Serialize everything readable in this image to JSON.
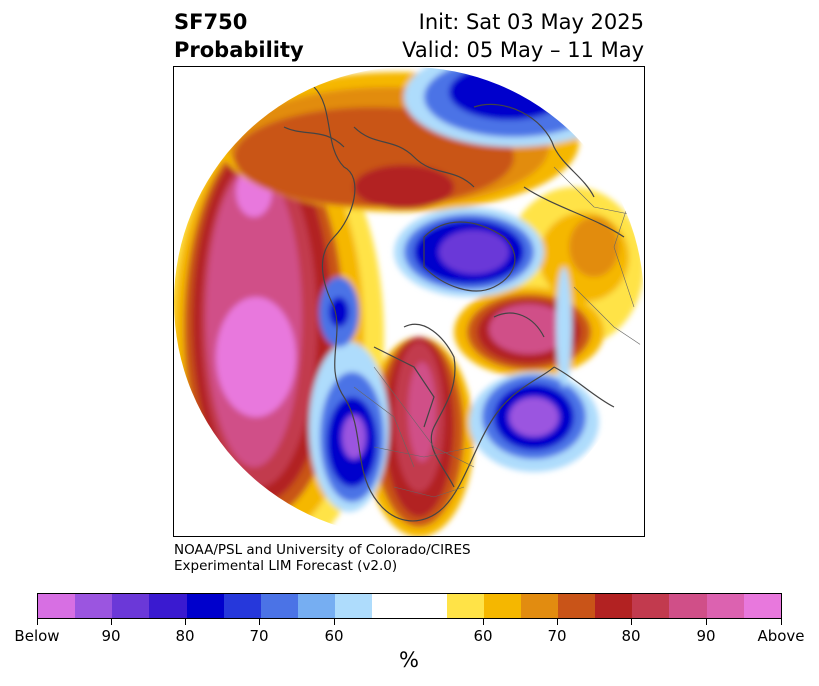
{
  "title": {
    "left_line1": "SF750",
    "left_line2": "Probability",
    "right_line1": "Init: Sat 03 May 2025",
    "right_line2": "Valid: 05 May – 11 May"
  },
  "credit": {
    "line1": "NOAA/PSL and University of Colorado/CIRES",
    "line2": "Experimental LIM Forecast (v2.0)"
  },
  "colorbar": {
    "unit": "%",
    "colors": [
      "#d76fe3",
      "#9b55e0",
      "#6b38d8",
      "#3a1ad0",
      "#0000cc",
      "#2638db",
      "#4b73e6",
      "#76aef2",
      "#aedcfc",
      "#ffffff",
      "#ffffff",
      "#ffe347",
      "#f5b700",
      "#e28c10",
      "#c95418",
      "#b22222",
      "#c23a4e",
      "#d04f88",
      "#dc62b0",
      "#e878dd"
    ],
    "tick_labels": [
      "Below",
      "90",
      "80",
      "70",
      "60",
      "60",
      "70",
      "80",
      "90",
      "Above"
    ]
  },
  "map": {
    "description_colors": {
      "below": "#3a1ad0",
      "above": "#c23a4e"
    }
  }
}
